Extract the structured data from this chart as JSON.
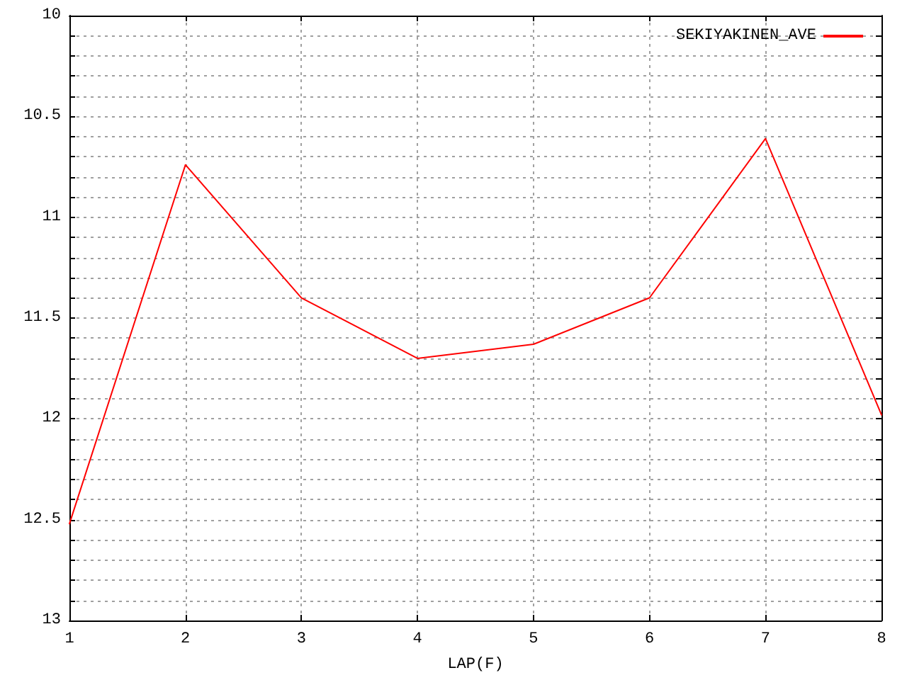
{
  "chart_data": {
    "type": "line",
    "xlabel": "LAP(F)",
    "x": [
      1,
      2,
      3,
      4,
      5,
      6,
      7,
      8
    ],
    "series": [
      {
        "name": "SEKIYAKINEN_AVE",
        "color": "#ff0000",
        "values": [
          12.52,
          10.74,
          11.4,
          11.7,
          11.63,
          11.4,
          10.61,
          11.98
        ]
      }
    ],
    "xlim": [
      1,
      8
    ],
    "xticks": [
      1,
      2,
      3,
      4,
      5,
      6,
      7,
      8
    ],
    "ylim": [
      13,
      10
    ],
    "yticks": [
      10,
      {
        "value": 10.1,
        "label": null
      },
      {
        "value": 10.2,
        "label": null
      },
      {
        "value": 10.3,
        "label": null
      },
      {
        "value": 10.4,
        "label": null
      },
      10.5,
      {
        "value": 10.6,
        "label": null
      },
      {
        "value": 10.7,
        "label": null
      },
      {
        "value": 10.8,
        "label": null
      },
      {
        "value": 10.9,
        "label": null
      },
      11,
      {
        "value": 11.1,
        "label": null
      },
      {
        "value": 11.2,
        "label": null
      },
      {
        "value": 11.3,
        "label": null
      },
      {
        "value": 11.4,
        "label": null
      },
      11.5,
      {
        "value": 11.6,
        "label": null
      },
      {
        "value": 11.7,
        "label": null
      },
      {
        "value": 11.8,
        "label": null
      },
      {
        "value": 11.9,
        "label": null
      },
      12,
      {
        "value": 12.1,
        "label": null
      },
      {
        "value": 12.2,
        "label": null
      },
      {
        "value": 12.3,
        "label": null
      },
      {
        "value": 12.4,
        "label": null
      },
      12.5,
      {
        "value": 12.6,
        "label": null
      },
      {
        "value": 12.7,
        "label": null
      },
      {
        "value": 12.8,
        "label": null
      },
      {
        "value": 12.9,
        "label": null
      },
      13
    ],
    "grid": true,
    "legend": "top right",
    "marker": "none",
    "line_style": "solid"
  }
}
